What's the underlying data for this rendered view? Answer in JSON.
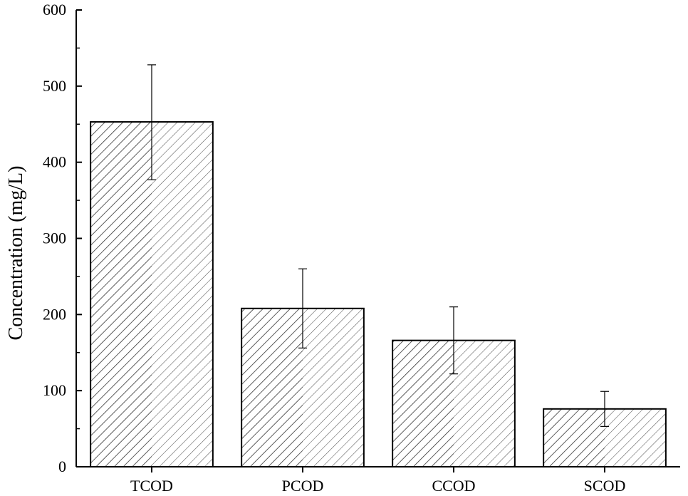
{
  "chart_data": {
    "type": "bar",
    "title": "",
    "xlabel": "",
    "ylabel": "Concentration (mg/L)",
    "ylim": [
      0,
      600
    ],
    "yticks": [
      0,
      100,
      200,
      300,
      400,
      500,
      600
    ],
    "categories": [
      "TCOD",
      "PCOD",
      "CCOD",
      "SCOD"
    ],
    "values": [
      453,
      208,
      166,
      76
    ],
    "error_low": [
      377,
      156,
      122,
      53
    ],
    "error_high": [
      528,
      260,
      210,
      99
    ],
    "hatch": "diagonal",
    "grid": false,
    "legend": "none"
  },
  "colors": {
    "bar_fill": "#ffffff",
    "hatch": "#333333",
    "axis": "#000000"
  }
}
